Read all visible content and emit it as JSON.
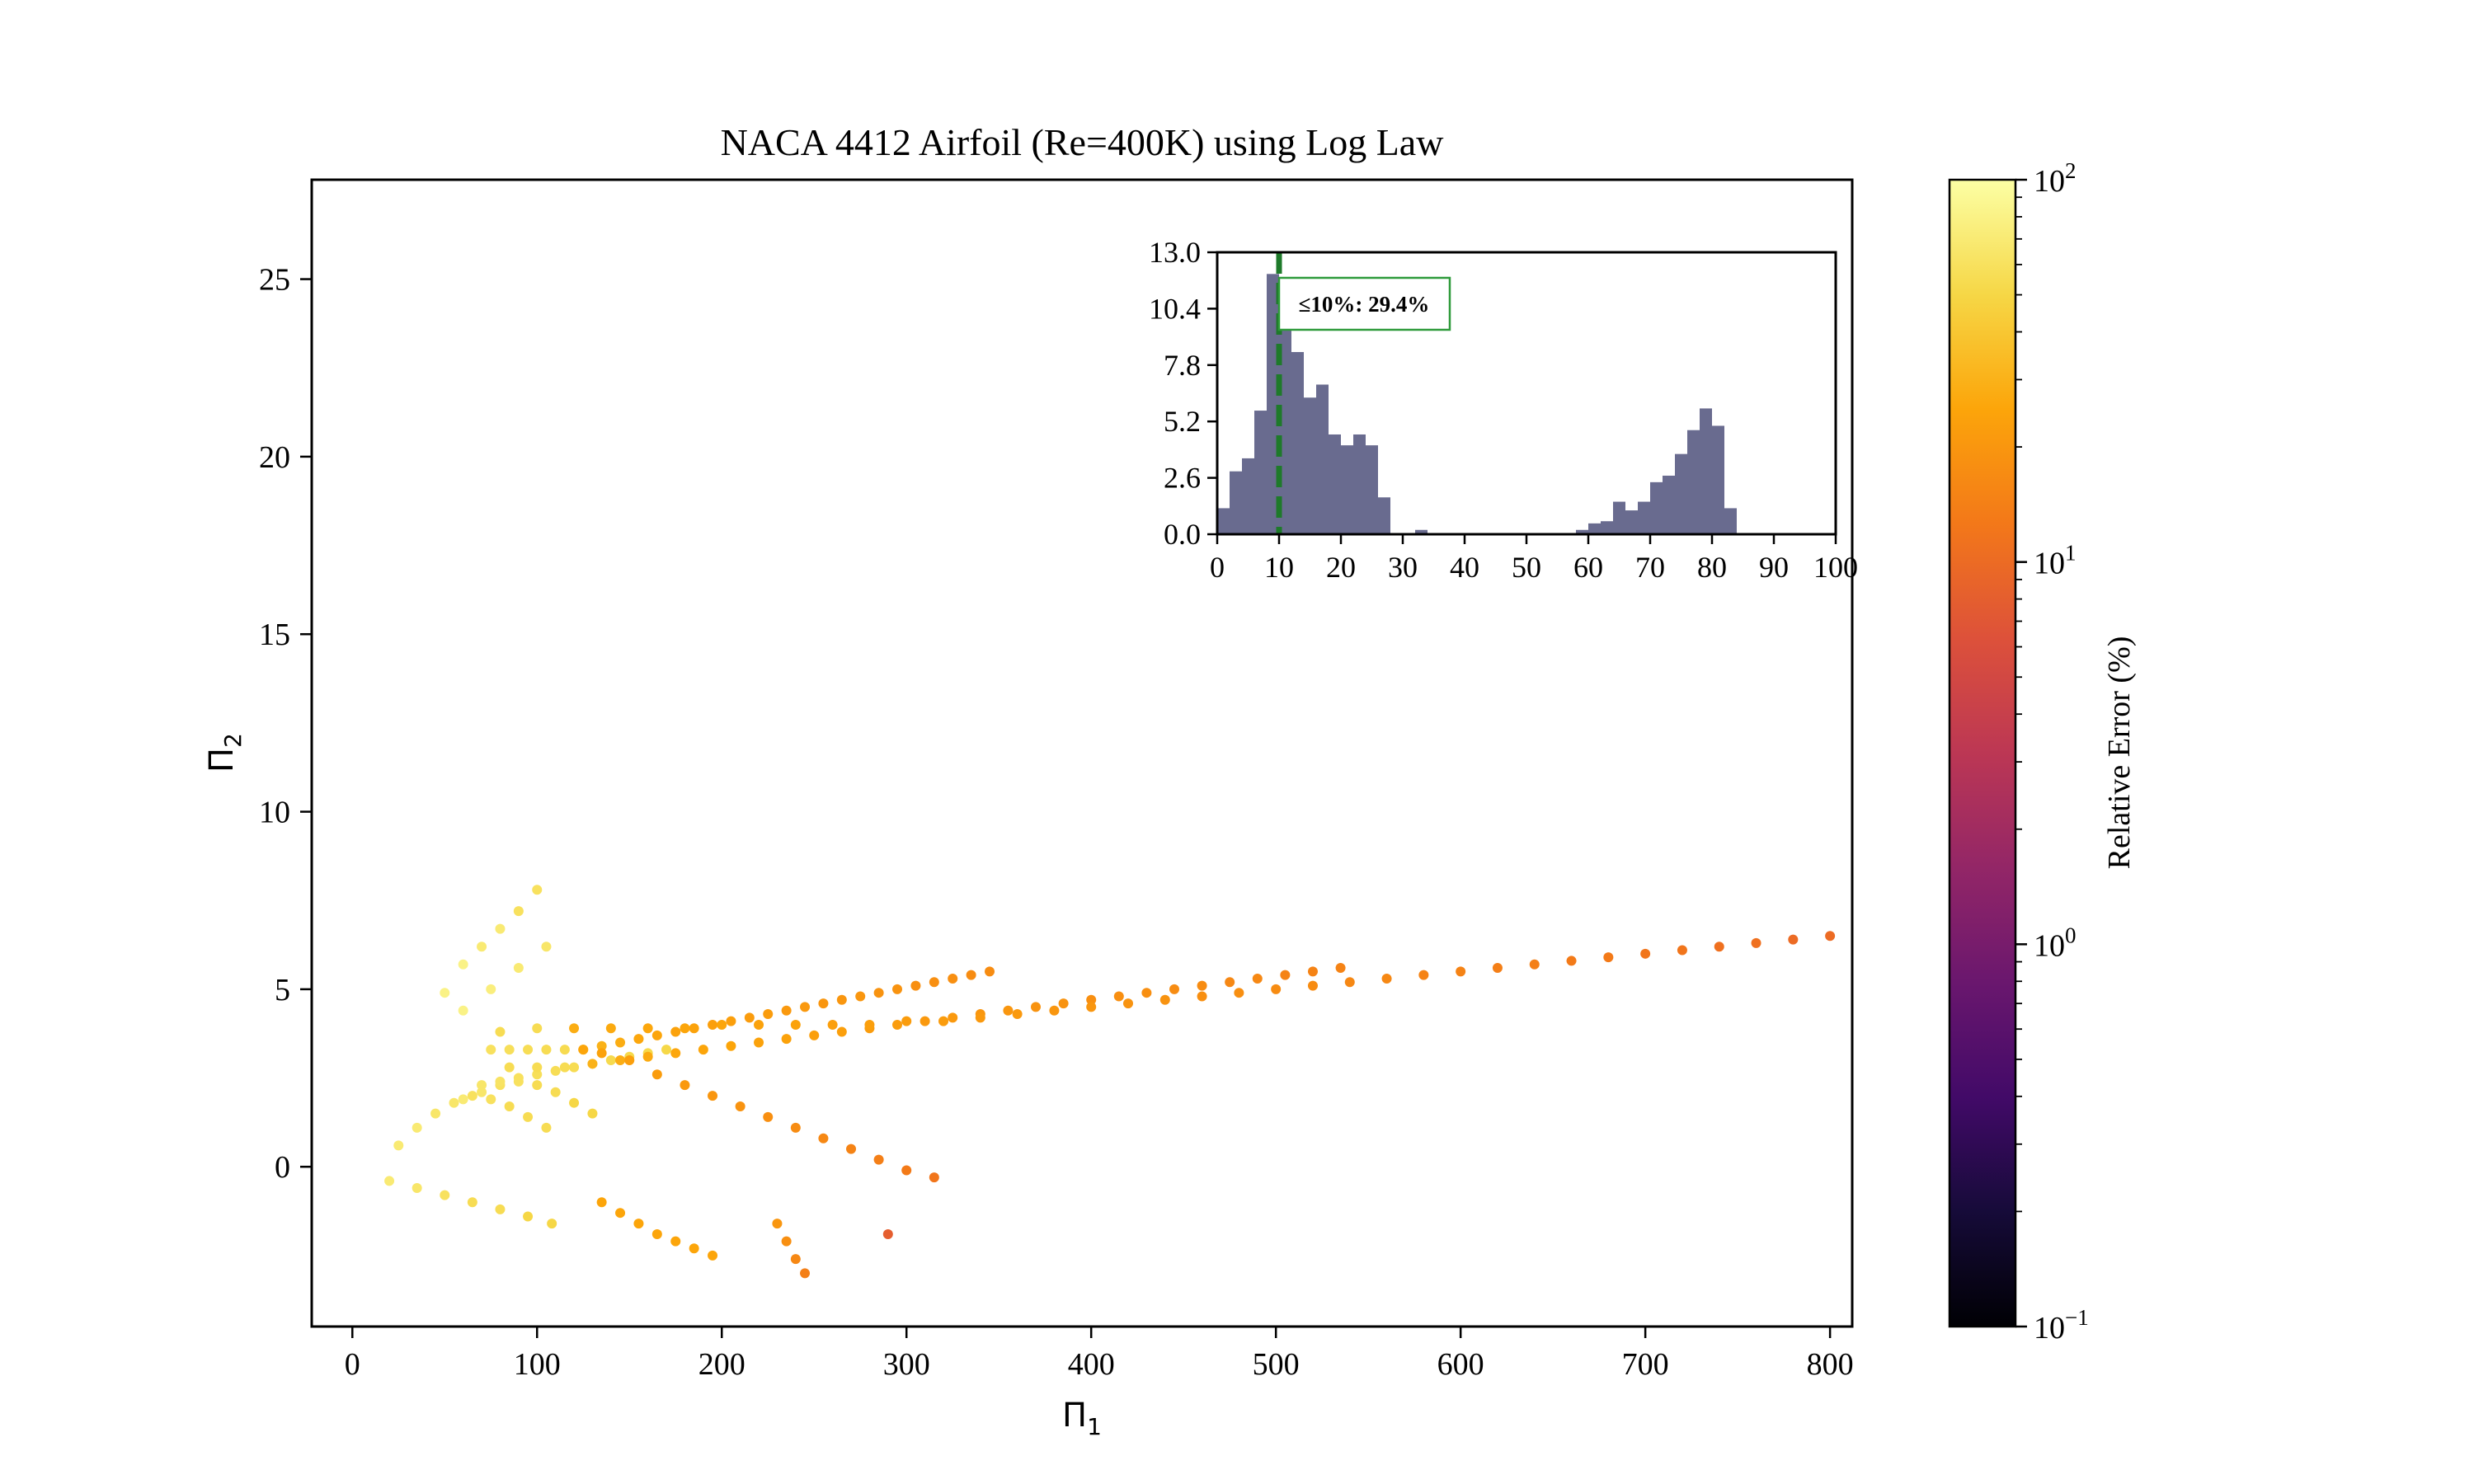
{
  "chart_data": [
    {
      "type": "scatter",
      "title": "NACA 4412 Airfoil (Re=400K) using Log Law",
      "xlabel": "Π",
      "xlabel_sub": "1",
      "ylabel": "Π",
      "ylabel_sub": "2",
      "xlim": [
        -22,
        812
      ],
      "ylim": [
        -4.5,
        27.8
      ],
      "xticks": [
        0,
        100,
        200,
        300,
        400,
        500,
        600,
        700,
        800
      ],
      "yticks": [
        0,
        5,
        10,
        15,
        20,
        25
      ],
      "grid": false,
      "colormap": "inferno",
      "color_scale": "log",
      "colorbar": {
        "label": "Relative Error (%)",
        "range": [
          0.1,
          100
        ],
        "ticks": [
          {
            "value": 0.1,
            "base": "10",
            "exp": "−1"
          },
          {
            "value": 1,
            "base": "10",
            "exp": "0"
          },
          {
            "value": 10,
            "base": "10",
            "exp": "1"
          },
          {
            "value": 100,
            "base": "10",
            "exp": "2"
          }
        ]
      },
      "series": [
        {
          "groups": [
            {
              "x": [
                50,
                60,
                70,
                80,
                90,
                100
              ],
              "y": [
                4.9,
                5.7,
                6.2,
                6.7,
                7.2,
                7.8
              ],
              "e": [
                80,
                80,
                70,
                70,
                60,
                60
              ]
            },
            {
              "x": [
                60,
                75,
                90,
                105
              ],
              "y": [
                4.4,
                5.0,
                5.6,
                6.2
              ],
              "e": [
                80,
                75,
                70,
                65
              ]
            },
            {
              "x": [
                20,
                35,
                50,
                65,
                80,
                95,
                108
              ],
              "y": [
                -0.4,
                -0.6,
                -0.8,
                -1.0,
                -1.2,
                -1.4,
                -1.6
              ],
              "e": [
                70,
                65,
                60,
                55,
                55,
                50,
                50
              ]
            },
            {
              "x": [
                135,
                145,
                155,
                165,
                175,
                185,
                195
              ],
              "y": [
                -1.0,
                -1.3,
                -1.6,
                -1.9,
                -2.1,
                -2.3,
                -2.5
              ],
              "e": [
                25,
                25,
                25,
                25,
                25,
                25,
                25
              ]
            },
            {
              "x": [
                230,
                235,
                240,
                245
              ],
              "y": [
                -1.6,
                -2.1,
                -2.6,
                -3.0
              ],
              "e": [
                20,
                18,
                16,
                14
              ]
            },
            {
              "x": [
                290
              ],
              "y": [
                -1.9
              ],
              "e": [
                8
              ]
            },
            {
              "x": [
                25,
                35,
                45,
                55,
                65,
                75,
                85,
                95,
                105
              ],
              "y": [
                0.6,
                1.1,
                1.5,
                1.8,
                2.0,
                1.9,
                1.7,
                1.4,
                1.1
              ],
              "e": [
                70,
                70,
                65,
                65,
                60,
                60,
                55,
                55,
                55
              ]
            },
            {
              "x": [
                60,
                70,
                80,
                90,
                100,
                110,
                120,
                130
              ],
              "y": [
                1.9,
                2.1,
                2.3,
                2.4,
                2.3,
                2.1,
                1.8,
                1.5
              ],
              "e": [
                70,
                65,
                60,
                60,
                55,
                55,
                50,
                50
              ]
            },
            {
              "x": [
                70,
                80,
                90,
                100,
                110,
                120,
                130,
                140,
                150,
                160,
                170
              ],
              "y": [
                2.3,
                2.4,
                2.5,
                2.6,
                2.7,
                2.8,
                2.9,
                3.0,
                3.1,
                3.2,
                3.3
              ],
              "e": [
                65,
                62,
                60,
                58,
                56,
                55,
                54,
                53,
                52,
                52,
                51
              ]
            },
            {
              "x": [
                75,
                85,
                95,
                105,
                115,
                125,
                135,
                145,
                155,
                165,
                175,
                185,
                195,
                205,
                215,
                225,
                235,
                245,
                255,
                265,
                275,
                285,
                295,
                305,
                315,
                325,
                335,
                345
              ],
              "y": [
                3.3,
                3.3,
                3.3,
                3.3,
                3.3,
                3.3,
                3.4,
                3.5,
                3.6,
                3.7,
                3.8,
                3.9,
                4.0,
                4.1,
                4.2,
                4.3,
                4.4,
                4.5,
                4.6,
                4.7,
                4.8,
                4.9,
                5.0,
                5.1,
                5.2,
                5.3,
                5.4,
                5.5
              ],
              "e": [
                60,
                58,
                56,
                55,
                54,
                50,
                30,
                28,
                26,
                25,
                24,
                24,
                23,
                23,
                22,
                22,
                21,
                21,
                20,
                20,
                20,
                19,
                19,
                18,
                18,
                18,
                17,
                17
              ]
            },
            {
              "x": [
                85,
                100,
                115,
                130,
                145,
                160,
                175,
                190,
                205,
                220,
                235,
                250,
                265,
                280,
                295,
                310,
                325,
                340,
                355,
                370,
                385,
                400,
                415,
                430,
                445,
                460,
                475,
                490,
                505,
                520,
                535
              ],
              "y": [
                2.8,
                2.8,
                2.8,
                2.9,
                3.0,
                3.1,
                3.2,
                3.3,
                3.4,
                3.5,
                3.6,
                3.7,
                3.8,
                3.9,
                4.0,
                4.1,
                4.2,
                4.3,
                4.4,
                4.5,
                4.6,
                4.7,
                4.8,
                4.9,
                5.0,
                5.1,
                5.2,
                5.3,
                5.4,
                5.5,
                5.6
              ],
              "e": [
                55,
                55,
                55,
                30,
                28,
                27,
                26,
                25,
                25,
                24,
                24,
                23,
                23,
                22,
                22,
                21,
                21,
                20,
                20,
                19,
                19,
                18,
                18,
                18,
                17,
                17,
                16,
                16,
                15,
                15,
                15
              ]
            },
            {
              "x": [
                80,
                100,
                120,
                140,
                160,
                180,
                200,
                220,
                240,
                260,
                280,
                300,
                320,
                340,
                360,
                380,
                400,
                420,
                440,
                460,
                480,
                500,
                520,
                540,
                560,
                580,
                600,
                620,
                640,
                660,
                680,
                700,
                720,
                740,
                760,
                780,
                800
              ],
              "y": [
                3.8,
                3.9,
                3.9,
                3.9,
                3.9,
                3.9,
                4.0,
                4.0,
                4.0,
                4.0,
                4.0,
                4.1,
                4.1,
                4.2,
                4.3,
                4.4,
                4.5,
                4.6,
                4.7,
                4.8,
                4.9,
                5.0,
                5.1,
                5.2,
                5.3,
                5.4,
                5.5,
                5.6,
                5.7,
                5.8,
                5.9,
                6.0,
                6.1,
                6.2,
                6.3,
                6.4,
                6.5
              ],
              "e": [
                55,
                55,
                28,
                27,
                26,
                25,
                25,
                24,
                24,
                23,
                23,
                22,
                22,
                21,
                21,
                20,
                20,
                19,
                19,
                18,
                18,
                17,
                17,
                16,
                16,
                15,
                15,
                14,
                14,
                13,
                13,
                12,
                12,
                11,
                11,
                10,
                10
              ]
            },
            {
              "x": [
                125,
                135,
                150,
                165,
                180,
                195,
                210,
                225,
                240,
                255,
                270,
                285,
                300,
                315
              ],
              "y": [
                3.3,
                3.2,
                3.0,
                2.6,
                2.3,
                2.0,
                1.7,
                1.4,
                1.1,
                0.8,
                0.5,
                0.2,
                -0.1,
                -0.3
              ],
              "e": [
                25,
                24,
                23,
                22,
                21,
                20,
                19,
                18,
                17,
                16,
                15,
                14,
                13,
                12
              ]
            }
          ]
        }
      ]
    },
    {
      "type": "bar",
      "subtype": "histogram",
      "bin_width": 2,
      "xlim": [
        0,
        100
      ],
      "ylim": [
        0,
        13
      ],
      "xticks": [
        0,
        10,
        20,
        30,
        40,
        50,
        60,
        70,
        80,
        90,
        100
      ],
      "yticks": [
        "0.0",
        "2.6",
        "5.2",
        "7.8",
        "10.4",
        "13.0"
      ],
      "bin_starts": [
        0,
        2,
        4,
        6,
        8,
        10,
        12,
        14,
        16,
        18,
        20,
        22,
        24,
        26,
        28,
        30,
        32,
        34,
        36,
        38,
        40,
        42,
        44,
        46,
        48,
        50,
        52,
        54,
        56,
        58,
        60,
        62,
        64,
        66,
        68,
        70,
        72,
        74,
        76,
        78,
        80,
        82
      ],
      "values": [
        1.2,
        2.9,
        3.5,
        5.7,
        12.0,
        10.5,
        8.4,
        6.3,
        6.9,
        4.6,
        4.1,
        4.6,
        4.1,
        1.7,
        0,
        0,
        0.2,
        0,
        0,
        0,
        0,
        0,
        0,
        0,
        0,
        0,
        0,
        0,
        0,
        0.2,
        0.5,
        0.6,
        1.5,
        1.1,
        1.5,
        2.4,
        2.7,
        3.7,
        4.8,
        5.8,
        5.0,
        1.2
      ],
      "bar_color": "#696b8f",
      "threshold": {
        "value": 10,
        "color": "#1e7a2a",
        "label": "≤10%: 29.4%"
      }
    }
  ]
}
